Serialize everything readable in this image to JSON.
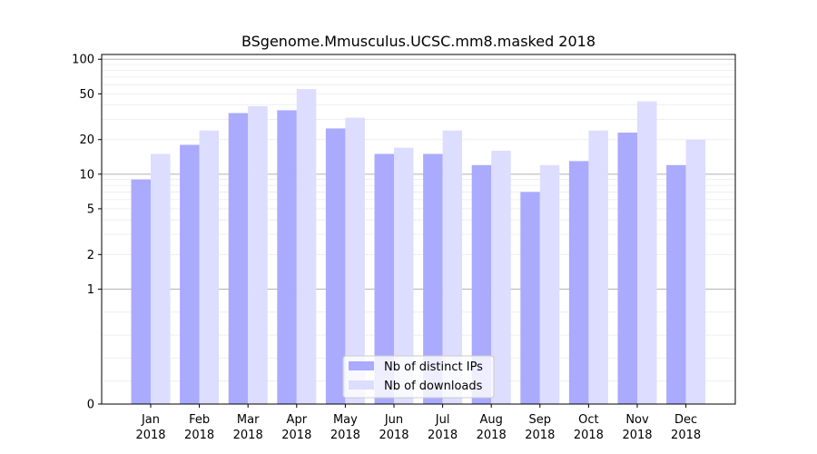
{
  "chart_data": {
    "type": "bar",
    "title": "BSgenome.Mmusculus.UCSC.mm8.masked 2018",
    "xlabel": "",
    "ylabel": "",
    "yscale": "symlog",
    "ylim": [
      0,
      110
    ],
    "yticks": [
      0,
      1,
      2,
      5,
      10,
      20,
      50,
      100
    ],
    "categories": [
      [
        "Jan",
        "2018"
      ],
      [
        "Feb",
        "2018"
      ],
      [
        "Mar",
        "2018"
      ],
      [
        "Apr",
        "2018"
      ],
      [
        "May",
        "2018"
      ],
      [
        "Jun",
        "2018"
      ],
      [
        "Jul",
        "2018"
      ],
      [
        "Aug",
        "2018"
      ],
      [
        "Sep",
        "2018"
      ],
      [
        "Oct",
        "2018"
      ],
      [
        "Nov",
        "2018"
      ],
      [
        "Dec",
        "2018"
      ]
    ],
    "series": [
      {
        "name": "Nb of distinct IPs",
        "color": "#aaaaff",
        "values": [
          9,
          18,
          34,
          36,
          25,
          15,
          15,
          12,
          7,
          13,
          23,
          12
        ]
      },
      {
        "name": "Nb of downloads",
        "color": "#ddddff",
        "values": [
          15,
          24,
          39,
          55,
          31,
          17,
          24,
          16,
          12,
          24,
          43,
          20
        ]
      }
    ],
    "grid": true,
    "legend": "bottom-center"
  }
}
